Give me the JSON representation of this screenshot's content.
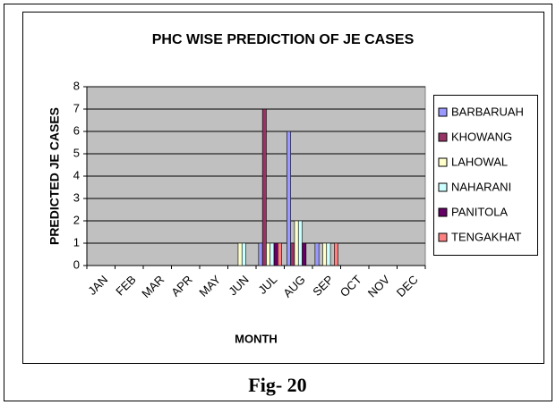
{
  "chart_data": {
    "type": "bar",
    "title": "PHC WISE PREDICTION OF JE CASES",
    "x_label": "MONTH",
    "y_label": "PREDICTED JE CASES",
    "categories": [
      "JAN",
      "FEB",
      "MAR",
      "APR",
      "MAY",
      "JUN",
      "JUL",
      "AUG",
      "SEP",
      "OCT",
      "NOV",
      "DEC"
    ],
    "series": [
      {
        "name": "BARBARUAH",
        "color": "#9999ff",
        "values": [
          0,
          0,
          0,
          0,
          0,
          0,
          1,
          6,
          1,
          0,
          0,
          0
        ]
      },
      {
        "name": "KHOWANG",
        "color": "#993366",
        "values": [
          0,
          0,
          0,
          0,
          0,
          0,
          7,
          1,
          0,
          0,
          0,
          0
        ]
      },
      {
        "name": "LAHOWAL",
        "color": "#ffffcc",
        "values": [
          0,
          0,
          0,
          0,
          0,
          1,
          1,
          2,
          1,
          0,
          0,
          0
        ]
      },
      {
        "name": "NAHARANI",
        "color": "#ccffff",
        "values": [
          0,
          0,
          0,
          0,
          0,
          1,
          1,
          2,
          1,
          0,
          0,
          0
        ]
      },
      {
        "name": "PANITOLA",
        "color": "#660066",
        "values": [
          0,
          0,
          0,
          0,
          0,
          0,
          1,
          1,
          0,
          0,
          0,
          0
        ]
      },
      {
        "name": "TENGAKHAT",
        "color": "#ff8080",
        "values": [
          0,
          0,
          0,
          0,
          0,
          0,
          1,
          0,
          1,
          0,
          0,
          0
        ]
      }
    ],
    "ylim": [
      0,
      8
    ],
    "yticks": [
      0,
      1,
      2,
      3,
      4,
      5,
      6,
      7,
      8
    ],
    "grid": true,
    "legend": "right"
  },
  "caption": "Fig- 20"
}
